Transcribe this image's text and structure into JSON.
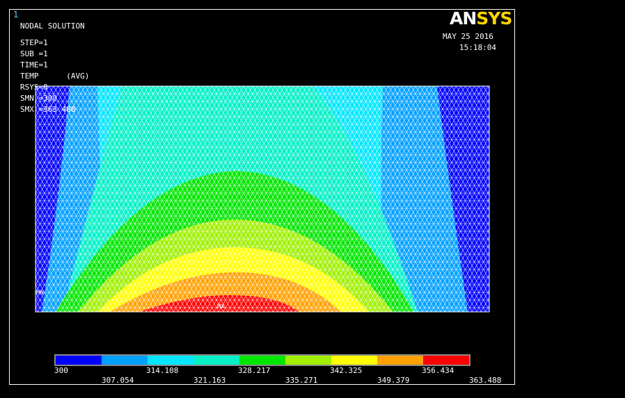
{
  "window_number": "1",
  "logo": {
    "part1": "AN",
    "part2": "SYS"
  },
  "date": "MAY 25 2016",
  "time": "15:18:04",
  "header": {
    "title": "NODAL SOLUTION",
    "step": "STEP=1",
    "sub": "SUB =1",
    "time": "TIME=1",
    "temp": "TEMP      (AVG)",
    "rsys": "RSYS=0",
    "smn": "SMN =300",
    "smx": "SMX =363.488"
  },
  "markers": {
    "min": "MN",
    "max": "MX"
  },
  "legend": {
    "colors": [
      "#0000ff",
      "#00a0ff",
      "#00e6ff",
      "#00f0c8",
      "#00e600",
      "#a0f000",
      "#ffff00",
      "#ffa000",
      "#ff0000"
    ],
    "labels_top": [
      "300",
      "314.108",
      "328.217",
      "342.325",
      "356.434"
    ],
    "labels_bottom": [
      "307.054",
      "321.163",
      "335.271",
      "349.379",
      "363.488"
    ]
  }
}
